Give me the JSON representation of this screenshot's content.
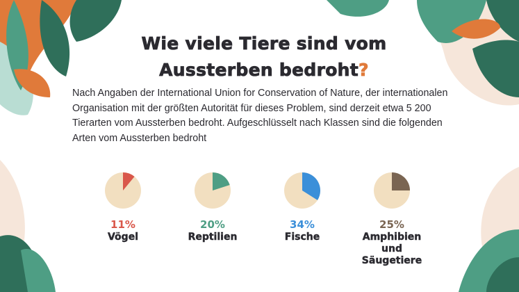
{
  "title": {
    "main": "Wie viele Tiere sind vom Aussterben bedroht",
    "mark": "?"
  },
  "description": "Nach Angaben der International Union for Conservation of Nature, der internationalen Organisation mit der größten Autorität für dieses Problem, sind derzeit etwa 5 200 Tierarten vom Aussterben bedroht. Aufgeschlüsselt nach Klassen sind die folgenden Arten vom Aussterben bedroht",
  "colors": {
    "background_slice": "#f2dfc0",
    "title": "#2b2a30",
    "accent": "#e07a3a",
    "leaf_green": "#4e9e84",
    "leaf_dark": "#2f6f5a"
  },
  "chart_data": {
    "type": "pie",
    "charts": [
      {
        "label": "11%",
        "category": "Vögel",
        "value": 11,
        "color": "#d9574a"
      },
      {
        "label": "20%",
        "category": "Reptilien",
        "value": 20,
        "color": "#4e9e84"
      },
      {
        "label": "34%",
        "category": "Fische",
        "value": 34,
        "color": "#3b8fd9"
      },
      {
        "label": "25%",
        "category": "Amphibien und Säugetiere",
        "value": 25,
        "color": "#7a6552"
      }
    ]
  }
}
